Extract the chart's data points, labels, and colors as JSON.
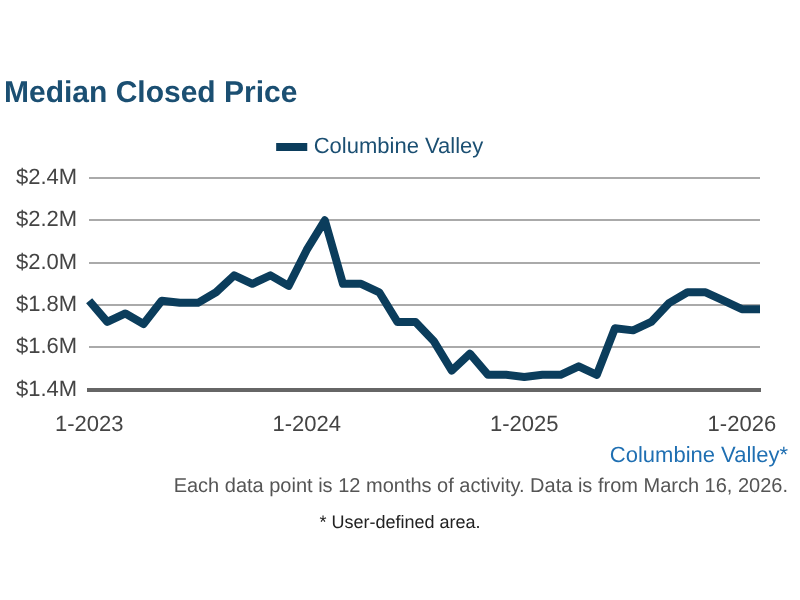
{
  "chart_data": {
    "type": "line",
    "title": "Median Closed Price",
    "categories": [
      "1-2023",
      null,
      null,
      null,
      null,
      null,
      null,
      null,
      null,
      null,
      null,
      null,
      "1-2024",
      null,
      null,
      null,
      null,
      null,
      null,
      null,
      null,
      null,
      null,
      null,
      "1-2025",
      null,
      null,
      null,
      null,
      null,
      null,
      null,
      null,
      null,
      null,
      null,
      "1-2026",
      null
    ],
    "series": [
      {
        "name": "Columbine Valley",
        "color": "#0b3d5c",
        "values": [
          1.82,
          1.72,
          1.76,
          1.71,
          1.82,
          1.81,
          1.81,
          1.86,
          1.94,
          1.9,
          1.94,
          1.89,
          2.06,
          2.2,
          1.9,
          1.9,
          1.86,
          1.72,
          1.72,
          1.63,
          1.49,
          1.57,
          1.47,
          1.47,
          1.46,
          1.47,
          1.47,
          1.51,
          1.47,
          1.69,
          1.68,
          1.72,
          1.81,
          1.86,
          1.86,
          1.82,
          1.78,
          1.78
        ]
      }
    ],
    "ylim": [
      1.4,
      2.4
    ],
    "yticks": [
      {
        "value": 1.4,
        "label": "$1.4M"
      },
      {
        "value": 1.6,
        "label": "$1.6M"
      },
      {
        "value": 1.8,
        "label": "$1.8M"
      },
      {
        "value": 2.0,
        "label": "$2.0M"
      },
      {
        "value": 2.2,
        "label": "$2.2M"
      },
      {
        "value": 2.4,
        "label": "$2.4M"
      }
    ],
    "grid": "y",
    "legend": "top",
    "marker": "none",
    "line_style": "solid",
    "annotations": [
      "Columbine Valley*",
      "Each data point is 12 months of activity. Data is from March 16, 2026.",
      "* User-defined area."
    ]
  }
}
